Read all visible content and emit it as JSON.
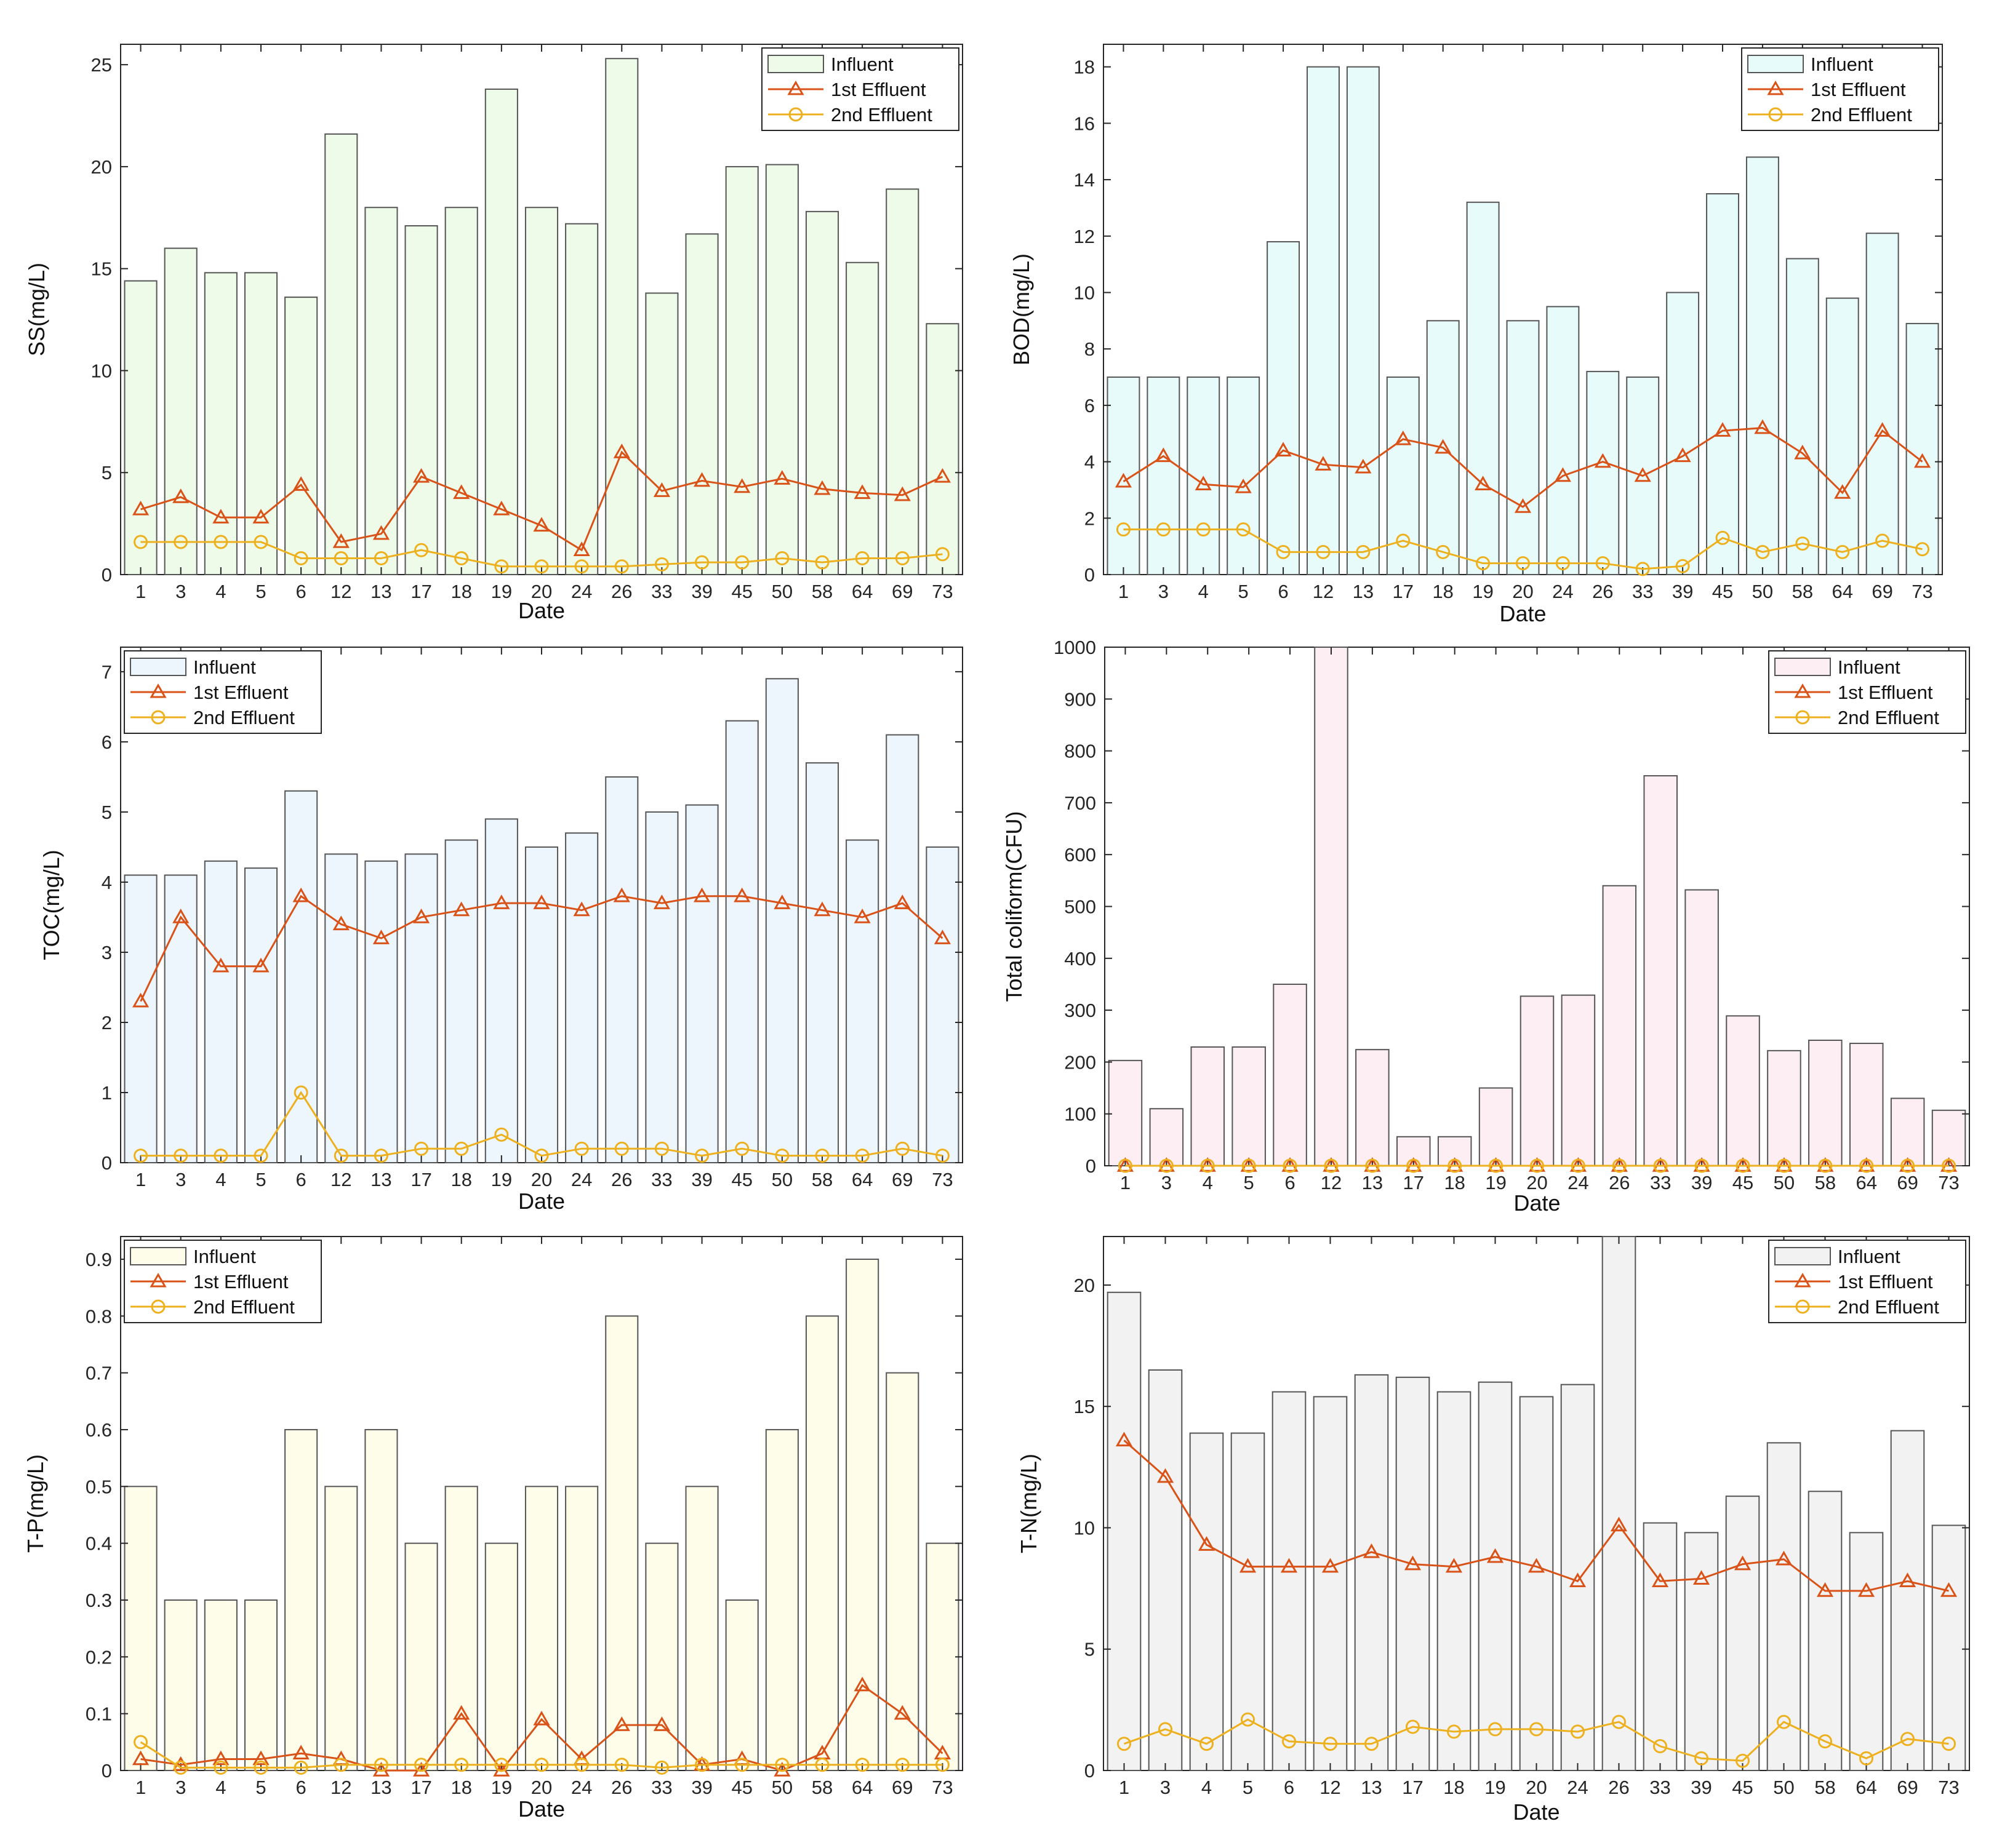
{
  "legend_labels": [
    "Influent",
    "1st Effluent",
    "2nd Effluent"
  ],
  "colors": {
    "line1": "#d95319",
    "line2": "#edb120",
    "axis": "#262626",
    "bar_edge": "#555555"
  },
  "chart_data": [
    {
      "type": "bar",
      "title": "",
      "xlabel": "Date",
      "ylabel": "SS(mg/L)",
      "ylim": [
        0,
        26
      ],
      "yticks": [
        0,
        5,
        10,
        15,
        20,
        25
      ],
      "legend_position": "top-right",
      "bar_color": "#eefbe9",
      "categories": [
        "1",
        "3",
        "4",
        "5",
        "6",
        "12",
        "13",
        "17",
        "18",
        "19",
        "20",
        "24",
        "26",
        "33",
        "39",
        "45",
        "50",
        "58",
        "64",
        "69",
        "73"
      ],
      "series": [
        {
          "name": "Influent",
          "values": [
            14.4,
            16.0,
            14.8,
            14.8,
            13.6,
            21.6,
            18.0,
            17.1,
            18.0,
            23.8,
            18.0,
            17.2,
            25.3,
            13.8,
            16.7,
            20.0,
            20.1,
            17.8,
            15.3,
            18.9,
            12.3
          ]
        },
        {
          "name": "1st Effluent",
          "values": [
            3.2,
            3.8,
            2.8,
            2.8,
            4.4,
            1.6,
            2.0,
            4.8,
            4.0,
            3.2,
            2.4,
            1.2,
            6.0,
            4.1,
            4.6,
            4.3,
            4.7,
            4.2,
            4.0,
            3.9,
            4.8
          ]
        },
        {
          "name": "2nd Effluent",
          "values": [
            1.6,
            1.6,
            1.6,
            1.6,
            0.8,
            0.8,
            0.8,
            1.2,
            0.8,
            0.4,
            0.4,
            0.4,
            0.4,
            0.5,
            0.6,
            0.6,
            0.8,
            0.6,
            0.8,
            0.8,
            1.0
          ]
        }
      ]
    },
    {
      "type": "bar",
      "title": "",
      "xlabel": "Date",
      "ylabel": "BOD(mg/L)",
      "ylim": [
        0,
        18.8
      ],
      "yticks": [
        0,
        2,
        4,
        6,
        8,
        10,
        12,
        14,
        16,
        18
      ],
      "legend_position": "top-right",
      "bar_color": "#e8fbfb",
      "categories": [
        "1",
        "3",
        "4",
        "5",
        "6",
        "12",
        "13",
        "17",
        "18",
        "19",
        "20",
        "24",
        "26",
        "33",
        "39",
        "45",
        "50",
        "58",
        "64",
        "69",
        "73"
      ],
      "series": [
        {
          "name": "Influent",
          "values": [
            7.0,
            7.0,
            7.0,
            7.0,
            11.8,
            18.0,
            18.0,
            7.0,
            9.0,
            13.2,
            9.0,
            9.5,
            7.2,
            7.0,
            10.0,
            13.5,
            14.8,
            11.2,
            9.8,
            12.1,
            8.9
          ]
        },
        {
          "name": "1st Effluent",
          "values": [
            3.3,
            4.2,
            3.2,
            3.1,
            4.4,
            3.9,
            3.8,
            4.8,
            4.5,
            3.2,
            2.4,
            3.5,
            4.0,
            3.5,
            4.2,
            5.1,
            5.2,
            4.3,
            2.9,
            5.1,
            4.0
          ]
        },
        {
          "name": "2nd Effluent",
          "values": [
            1.6,
            1.6,
            1.6,
            1.6,
            0.8,
            0.8,
            0.8,
            1.2,
            0.8,
            0.4,
            0.4,
            0.4,
            0.4,
            0.2,
            0.3,
            1.3,
            0.8,
            1.1,
            0.8,
            1.2,
            0.9
          ]
        }
      ]
    },
    {
      "type": "bar",
      "title": "",
      "xlabel": "Date",
      "ylabel": "TOC(mg/L)",
      "ylim": [
        0,
        7.35
      ],
      "yticks": [
        0,
        1,
        2,
        3,
        4,
        5,
        6,
        7
      ],
      "legend_position": "top-left",
      "bar_color": "#edf5fd",
      "categories": [
        "1",
        "3",
        "4",
        "5",
        "6",
        "12",
        "13",
        "17",
        "18",
        "19",
        "20",
        "24",
        "26",
        "33",
        "39",
        "45",
        "50",
        "58",
        "64",
        "69",
        "73"
      ],
      "series": [
        {
          "name": "Influent",
          "values": [
            4.1,
            4.1,
            4.3,
            4.2,
            5.3,
            4.4,
            4.3,
            4.4,
            4.6,
            4.9,
            4.5,
            4.7,
            5.5,
            5.0,
            5.1,
            6.3,
            6.9,
            5.7,
            4.6,
            6.1,
            4.5
          ]
        },
        {
          "name": "1st Effluent",
          "values": [
            2.3,
            3.5,
            2.8,
            2.8,
            3.8,
            3.4,
            3.2,
            3.5,
            3.6,
            3.7,
            3.7,
            3.6,
            3.8,
            3.7,
            3.8,
            3.8,
            3.7,
            3.6,
            3.5,
            3.7,
            3.2
          ]
        },
        {
          "name": "2nd Effluent",
          "values": [
            0.1,
            0.1,
            0.1,
            0.1,
            1.0,
            0.1,
            0.1,
            0.2,
            0.2,
            0.4,
            0.1,
            0.2,
            0.2,
            0.2,
            0.1,
            0.2,
            0.1,
            0.1,
            0.1,
            0.2,
            0.1
          ]
        }
      ]
    },
    {
      "type": "bar",
      "title": "",
      "xlabel": "Date",
      "ylabel": "Total coliform(CFU)",
      "ylim": [
        0,
        1000
      ],
      "yticks": [
        0,
        100,
        200,
        300,
        400,
        500,
        600,
        700,
        800,
        900,
        1000
      ],
      "legend_position": "top-right",
      "bar_color": "#fdeef3",
      "categories": [
        "1",
        "3",
        "4",
        "5",
        "6",
        "12",
        "13",
        "17",
        "18",
        "19",
        "20",
        "24",
        "26",
        "33",
        "39",
        "45",
        "50",
        "58",
        "64",
        "69",
        "73"
      ],
      "series": [
        {
          "name": "Influent",
          "values": [
            203,
            110,
            229,
            229,
            350,
            1000,
            224,
            56,
            56,
            150,
            327,
            329,
            540,
            752,
            532,
            289,
            222,
            242,
            236,
            130,
            107
          ]
        },
        {
          "name": "1st Effluent",
          "values": [
            0,
            0,
            0,
            0,
            0,
            0,
            0,
            0,
            0,
            0,
            0,
            0,
            0,
            0,
            0,
            0,
            0,
            0,
            0,
            0,
            0
          ]
        },
        {
          "name": "2nd Effluent",
          "values": [
            0,
            0,
            0,
            0,
            0,
            0,
            0,
            0,
            0,
            0,
            0,
            0,
            0,
            0,
            0,
            0,
            0,
            0,
            0,
            0,
            0
          ]
        }
      ]
    },
    {
      "type": "bar",
      "title": "",
      "xlabel": "Date",
      "ylabel": "T-P(mg/L)",
      "ylim": [
        0,
        0.94
      ],
      "yticks": [
        0,
        0.1,
        0.2,
        0.3,
        0.4,
        0.5,
        0.6,
        0.7,
        0.8,
        0.9
      ],
      "legend_position": "top-left",
      "bar_color": "#fdfdea",
      "categories": [
        "1",
        "3",
        "4",
        "5",
        "6",
        "12",
        "13",
        "17",
        "18",
        "19",
        "20",
        "24",
        "26",
        "33",
        "39",
        "45",
        "50",
        "58",
        "64",
        "69",
        "73"
      ],
      "series": [
        {
          "name": "Influent",
          "values": [
            0.5,
            0.3,
            0.3,
            0.3,
            0.6,
            0.5,
            0.6,
            0.4,
            0.5,
            0.4,
            0.5,
            0.5,
            0.8,
            0.4,
            0.5,
            0.3,
            0.6,
            0.8,
            0.9,
            0.7,
            0.4
          ]
        },
        {
          "name": "1st Effluent",
          "values": [
            0.02,
            0.01,
            0.02,
            0.02,
            0.03,
            0.02,
            0.0,
            0.0,
            0.1,
            0.0,
            0.09,
            0.02,
            0.08,
            0.08,
            0.01,
            0.02,
            0.0,
            0.03,
            0.15,
            0.1,
            0.03
          ]
        },
        {
          "name": "2nd Effluent",
          "values": [
            0.05,
            0.005,
            0.005,
            0.005,
            0.005,
            0.01,
            0.01,
            0.01,
            0.01,
            0.01,
            0.01,
            0.01,
            0.01,
            0.005,
            0.01,
            0.01,
            0.01,
            0.01,
            0.01,
            0.01,
            0.01
          ]
        }
      ]
    },
    {
      "type": "bar",
      "title": "",
      "xlabel": "Date",
      "ylabel": "T-N(mg/L)",
      "ylim": [
        0,
        22
      ],
      "yticks": [
        0,
        5,
        10,
        15,
        20
      ],
      "legend_position": "top-right",
      "bar_color": "#f2f2f2",
      "categories": [
        "1",
        "3",
        "4",
        "5",
        "6",
        "12",
        "13",
        "17",
        "18",
        "19",
        "20",
        "24",
        "26",
        "33",
        "39",
        "45",
        "50",
        "58",
        "64",
        "69",
        "73"
      ],
      "series": [
        {
          "name": "Influent",
          "values": [
            19.7,
            16.5,
            13.9,
            13.9,
            15.6,
            15.4,
            16.3,
            16.2,
            15.6,
            16.0,
            15.4,
            15.9,
            22.0,
            10.2,
            9.8,
            11.3,
            13.5,
            11.5,
            9.8,
            14.0,
            10.1
          ]
        },
        {
          "name": "1st Effluent",
          "values": [
            13.6,
            12.1,
            9.3,
            8.4,
            8.4,
            8.4,
            9.0,
            8.5,
            8.4,
            8.8,
            8.4,
            7.8,
            10.1,
            7.8,
            7.9,
            8.5,
            8.7,
            7.4,
            7.4,
            7.8,
            7.4
          ]
        },
        {
          "name": "2nd Effluent",
          "values": [
            1.1,
            1.7,
            1.1,
            2.1,
            1.2,
            1.1,
            1.1,
            1.8,
            1.6,
            1.7,
            1.7,
            1.6,
            2.0,
            1.0,
            0.5,
            0.4,
            2.0,
            1.2,
            0.5,
            1.3,
            1.1
          ]
        }
      ]
    }
  ]
}
